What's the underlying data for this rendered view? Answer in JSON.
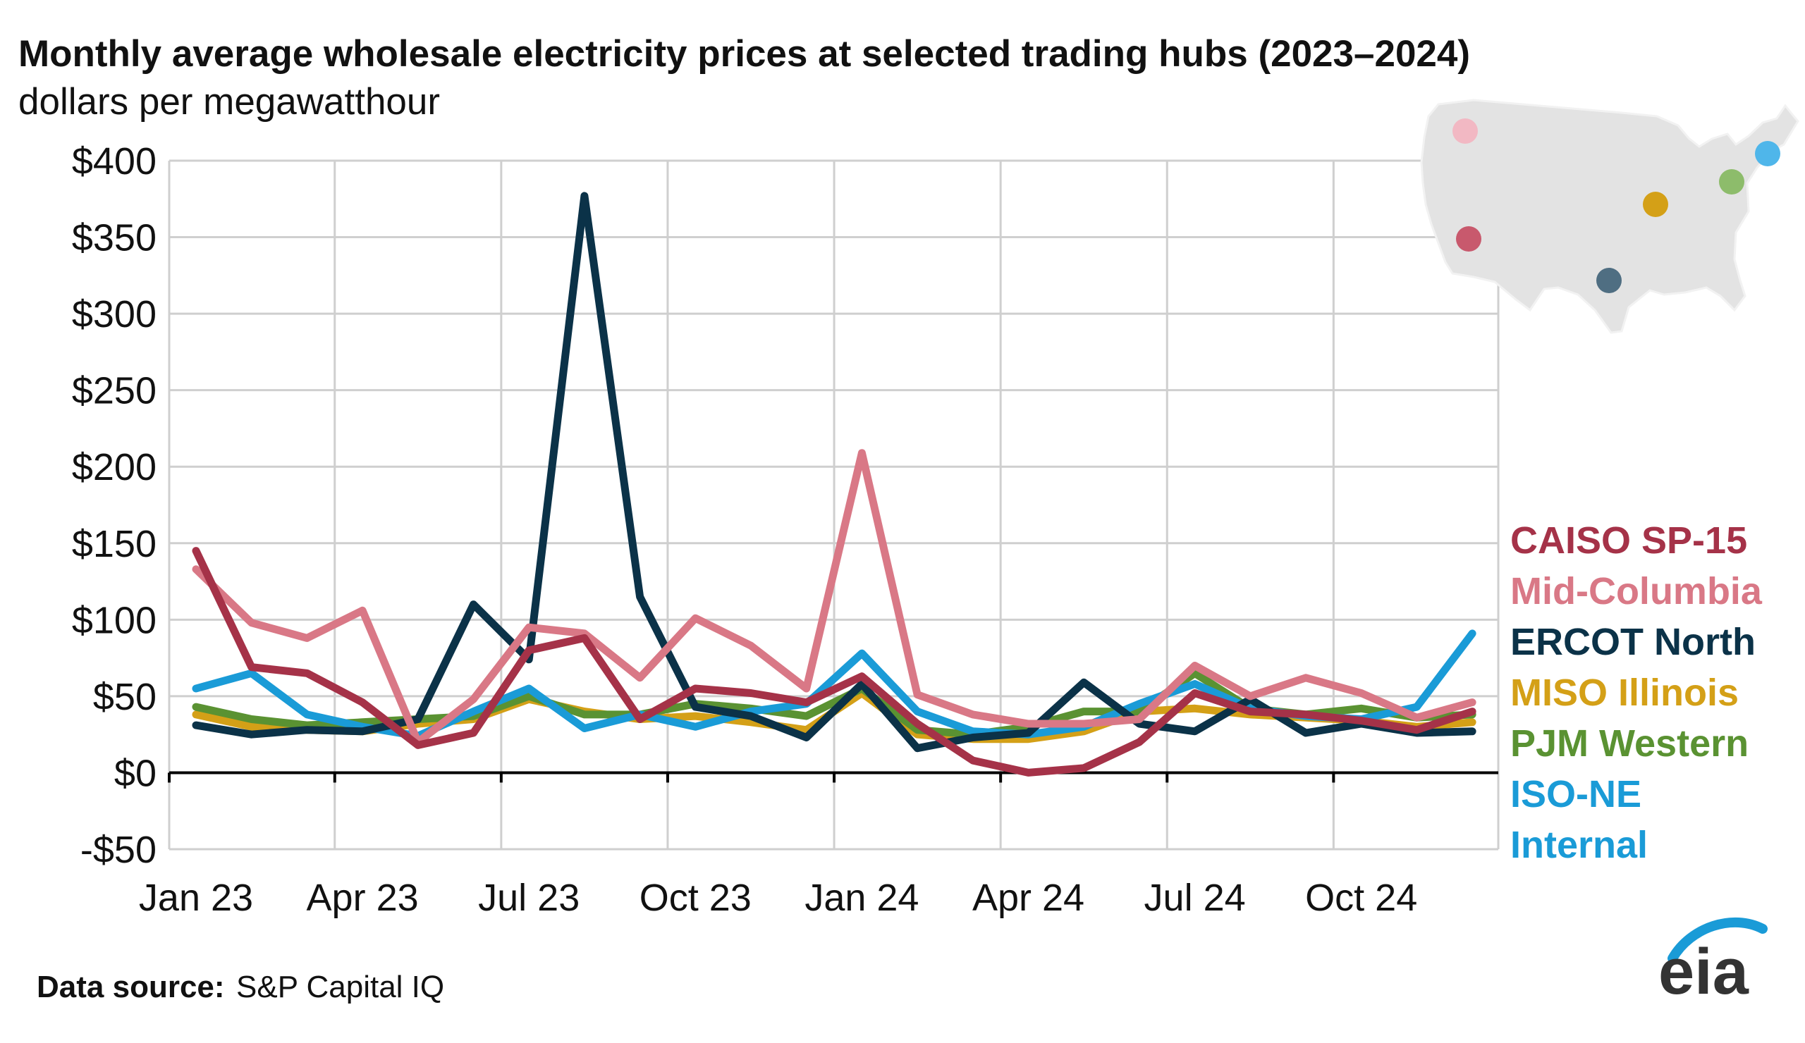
{
  "header": {
    "title": "Monthly average wholesale electricity prices at selected trading hubs (2023–2024)",
    "subtitle": "dollars per megawatthour"
  },
  "source": {
    "label": "Data source:",
    "text": "S&P Capital IQ"
  },
  "logo": {
    "text": "eia"
  },
  "chart_data": {
    "type": "line",
    "title": "Monthly average wholesale electricity prices at selected trading hubs (2023–2024)",
    "subtitle": "dollars per megawatthour",
    "xlabel": "",
    "ylabel": "",
    "ylim": [
      -50,
      400
    ],
    "yticks": [
      400,
      350,
      300,
      250,
      200,
      150,
      100,
      50,
      0,
      -50
    ],
    "ytick_labels": [
      "$400",
      "$350",
      "$300",
      "$250",
      "$200",
      "$150",
      "$100",
      "$50",
      "$0",
      "-$50"
    ],
    "x_ticks": [
      {
        "label": "Jan 23",
        "index": 0
      },
      {
        "label": "Apr 23",
        "index": 3
      },
      {
        "label": "Jul 23",
        "index": 6
      },
      {
        "label": "Oct 23",
        "index": 9
      },
      {
        "label": "Jan 24",
        "index": 12
      },
      {
        "label": "Apr 24",
        "index": 15
      },
      {
        "label": "Jul 24",
        "index": 18
      },
      {
        "label": "Oct 24",
        "index": 21
      }
    ],
    "grid": true,
    "legend_position": "right",
    "series": [
      {
        "name": "MISO Illinois",
        "color": "#d4a017",
        "values": [
          38,
          30,
          28,
          27,
          32,
          35,
          48,
          40,
          35,
          37,
          33,
          28,
          52,
          25,
          22,
          22,
          27,
          40,
          42,
          38,
          36,
          34,
          30,
          33
        ]
      },
      {
        "name": "PJM Western",
        "color": "#5a9232",
        "values": [
          43,
          35,
          31,
          33,
          35,
          37,
          50,
          38,
          38,
          45,
          42,
          37,
          55,
          28,
          25,
          30,
          40,
          40,
          65,
          42,
          38,
          42,
          36,
          38
        ]
      },
      {
        "name": "ISO-NE Internal",
        "color": "#1a9bd7",
        "values": [
          55,
          65,
          38,
          30,
          24,
          40,
          55,
          29,
          38,
          30,
          40,
          45,
          78,
          40,
          27,
          25,
          30,
          45,
          58,
          42,
          37,
          35,
          43,
          91
        ]
      },
      {
        "name": "ERCOT North",
        "color": "#0b3248",
        "values": [
          31,
          25,
          28,
          27,
          35,
          110,
          74,
          377,
          115,
          43,
          37,
          23,
          58,
          16,
          23,
          26,
          59,
          32,
          27,
          48,
          26,
          32,
          26,
          27
        ]
      },
      {
        "name": "Mid-Columbia",
        "color": "#d97886",
        "values": [
          133,
          98,
          88,
          106,
          20,
          48,
          95,
          91,
          62,
          101,
          83,
          55,
          209,
          51,
          38,
          32,
          32,
          35,
          70,
          50,
          62,
          52,
          36,
          46
        ]
      },
      {
        "name": "CAISO SP-15",
        "color": "#a53248",
        "values": [
          145,
          69,
          65,
          46,
          18,
          26,
          80,
          88,
          35,
          55,
          52,
          46,
          63,
          32,
          8,
          0,
          3,
          20,
          52,
          40,
          38,
          34,
          28,
          40
        ]
      }
    ],
    "legend": [
      {
        "text": "CAISO SP-15",
        "color": "#a53248"
      },
      {
        "text": "Mid-Columbia",
        "color": "#d97886"
      },
      {
        "text": "ERCOT North",
        "color": "#0b3248"
      },
      {
        "text": "MISO Illinois",
        "color": "#d4a017"
      },
      {
        "text": "PJM Western",
        "color": "#5a9232"
      },
      {
        "text": "ISO-NE",
        "color": "#1a9bd7"
      },
      {
        "text": "Internal",
        "color": "#1a9bd7"
      }
    ],
    "map_markers": [
      {
        "name": "Mid-Columbia",
        "color": "#f2b8c3"
      },
      {
        "name": "CAISO SP-15",
        "color": "#c8596d"
      },
      {
        "name": "ERCOT North",
        "color": "#4f6e82"
      },
      {
        "name": "MISO Illinois",
        "color": "#d4a017"
      },
      {
        "name": "PJM Western",
        "color": "#8dbc6b"
      },
      {
        "name": "ISO-NE Internal",
        "color": "#4fb6ea"
      }
    ]
  }
}
